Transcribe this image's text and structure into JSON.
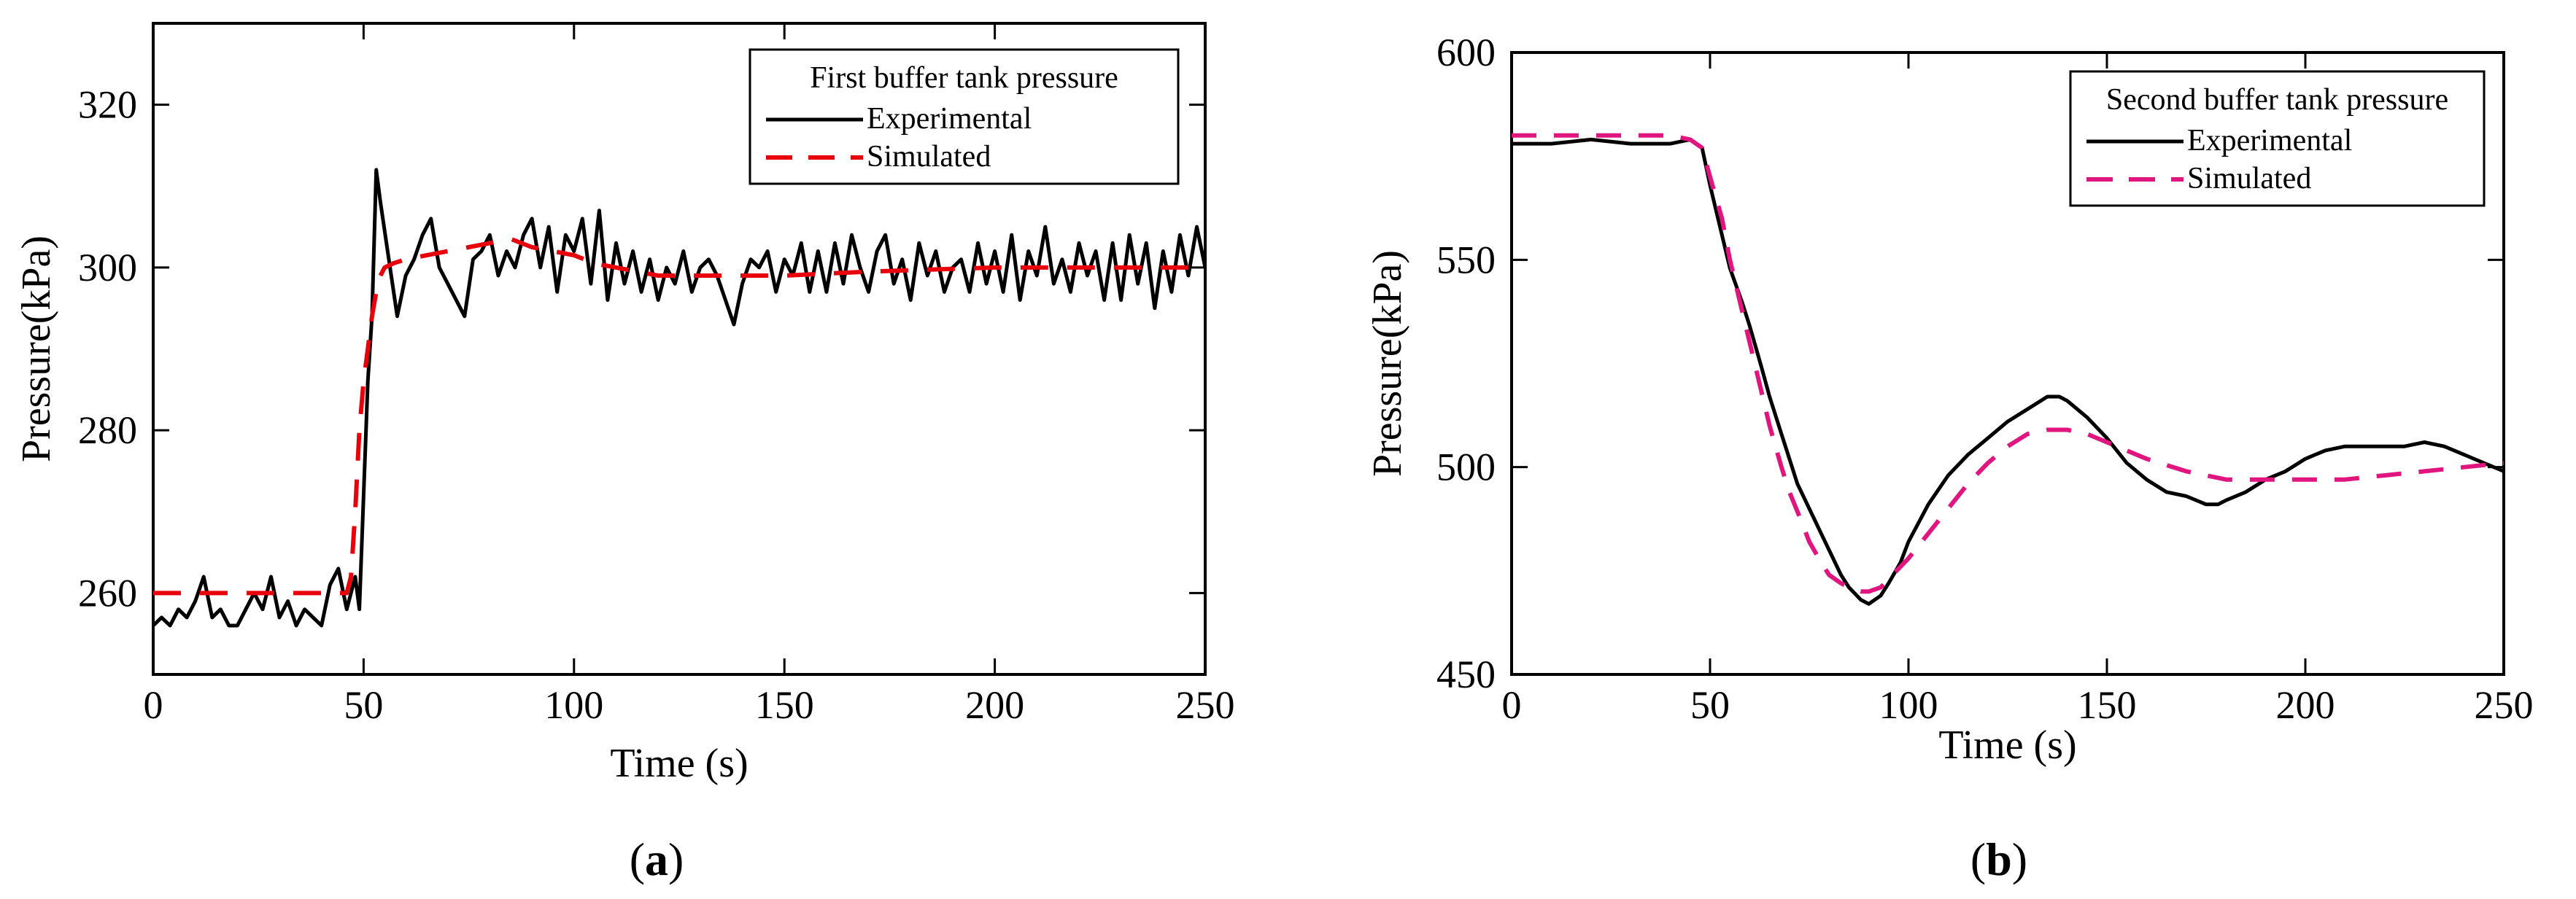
{
  "colors": {
    "experimental": "#000000",
    "simulated_a": "#e8000b",
    "simulated_b": "#e0157f",
    "frame": "#000000"
  },
  "panels": [
    {
      "label_open": "(",
      "label_letter": "a",
      "label_close": ")",
      "legend": {
        "title": "First buffer tank pressure",
        "experimental": "Experimental",
        "simulated": "Simulated"
      }
    },
    {
      "label_open": "(",
      "label_letter": "b",
      "label_close": ")",
      "legend": {
        "title": "Second buffer tank pressure",
        "experimental": "Experimental",
        "simulated": "Simulated"
      }
    }
  ],
  "chart_data": [
    {
      "type": "line",
      "title": "First buffer tank pressure",
      "xlabel": "Time (s)",
      "ylabel": "Pressure(kPa)",
      "xlim": [
        0,
        250
      ],
      "ylim": [
        250,
        330
      ],
      "xticks": [
        0,
        50,
        100,
        150,
        200,
        250
      ],
      "yticks": [
        260,
        280,
        300,
        320
      ],
      "legend_position": "top-right",
      "series": [
        {
          "name": "Experimental",
          "style": "solid",
          "x": [
            0,
            2,
            4,
            6,
            8,
            10,
            12,
            14,
            16,
            18,
            20,
            22,
            24,
            26,
            28,
            30,
            32,
            34,
            36,
            38,
            40,
            42,
            44,
            46,
            48,
            49,
            50,
            51,
            52,
            53,
            54,
            56,
            58,
            60,
            62,
            64,
            66,
            68,
            70,
            72,
            74,
            76,
            78,
            80,
            82,
            84,
            86,
            88,
            90,
            92,
            94,
            96,
            98,
            100,
            102,
            104,
            106,
            108,
            110,
            112,
            114,
            116,
            118,
            120,
            122,
            124,
            126,
            128,
            130,
            132,
            134,
            136,
            138,
            140,
            142,
            144,
            146,
            148,
            150,
            152,
            154,
            156,
            158,
            160,
            162,
            164,
            166,
            168,
            170,
            172,
            174,
            176,
            178,
            180,
            182,
            184,
            186,
            188,
            190,
            192,
            194,
            196,
            198,
            200,
            202,
            204,
            206,
            208,
            210,
            212,
            214,
            216,
            218,
            220,
            222,
            224,
            226,
            228,
            230,
            232,
            234,
            236,
            238,
            240,
            242,
            244,
            246,
            248,
            250
          ],
          "values": [
            256,
            257,
            256,
            258,
            257,
            259,
            262,
            257,
            258,
            256,
            256,
            258,
            260,
            258,
            262,
            257,
            259,
            256,
            258,
            257,
            256,
            261,
            263,
            258,
            262,
            258,
            272,
            286,
            294,
            312,
            308,
            301,
            294,
            299,
            301,
            304,
            306,
            300,
            298,
            296,
            294,
            301,
            302,
            304,
            299,
            302,
            300,
            304,
            306,
            300,
            305,
            297,
            304,
            302,
            306,
            298,
            307,
            296,
            303,
            298,
            302,
            297,
            301,
            296,
            300,
            298,
            302,
            297,
            300,
            301,
            299,
            296,
            293,
            298,
            301,
            300,
            302,
            297,
            301,
            299,
            303,
            297,
            302,
            297,
            303,
            298,
            304,
            300,
            297,
            302,
            304,
            298,
            301,
            296,
            303,
            299,
            302,
            297,
            300,
            301,
            297,
            303,
            298,
            302,
            297,
            304,
            296,
            302,
            299,
            305,
            298,
            301,
            297,
            303,
            299,
            302,
            296,
            303,
            296,
            304,
            298,
            303,
            295,
            302,
            297,
            304,
            299,
            305,
            300
          ]
        },
        {
          "name": "Simulated",
          "style": "dashed",
          "x": [
            0,
            46,
            47,
            48,
            49,
            50,
            51,
            52,
            53,
            54,
            55,
            57,
            60,
            65,
            70,
            75,
            80,
            85,
            90,
            95,
            100,
            105,
            110,
            115,
            120,
            130,
            140,
            150,
            170,
            200,
            230,
            250
          ],
          "values": [
            260,
            260,
            262,
            270,
            280,
            286,
            290,
            294,
            297,
            299,
            300,
            300.5,
            301,
            301.5,
            302,
            302.5,
            303,
            303.5,
            302.5,
            302,
            301.5,
            300.5,
            300,
            299.5,
            299,
            299,
            299,
            299,
            299.5,
            300,
            300,
            300
          ]
        }
      ]
    },
    {
      "type": "line",
      "title": "Second buffer tank pressure",
      "xlabel": "Time (s)",
      "ylabel": "Pressure(kPa)",
      "xlim": [
        0,
        250
      ],
      "ylim": [
        450,
        600
      ],
      "xticks": [
        0,
        50,
        100,
        150,
        200,
        250
      ],
      "yticks": [
        450,
        500,
        550,
        600
      ],
      "legend_position": "top-right",
      "series": [
        {
          "name": "Experimental",
          "style": "solid",
          "x": [
            0,
            10,
            20,
            30,
            40,
            45,
            48,
            50,
            52,
            55,
            58,
            60,
            63,
            65,
            68,
            70,
            72,
            75,
            78,
            80,
            83,
            85,
            88,
            90,
            93,
            95,
            98,
            100,
            105,
            110,
            115,
            120,
            125,
            130,
            135,
            138,
            140,
            145,
            150,
            155,
            160,
            165,
            170,
            175,
            178,
            180,
            185,
            190,
            195,
            200,
            205,
            210,
            215,
            220,
            225,
            230,
            235,
            240,
            245,
            250
          ],
          "values": [
            578,
            578,
            579,
            578,
            578,
            579,
            577,
            568,
            560,
            548,
            540,
            534,
            524,
            517,
            508,
            502,
            496,
            490,
            484,
            480,
            474,
            471,
            468,
            467,
            469,
            472,
            477,
            482,
            491,
            498,
            503,
            507,
            511,
            514,
            517,
            517,
            516,
            512,
            507,
            501,
            497,
            494,
            493,
            491,
            491,
            492,
            494,
            497,
            499,
            502,
            504,
            505,
            505,
            505,
            505,
            506,
            505,
            503,
            501,
            499
          ]
        },
        {
          "name": "Simulated",
          "style": "dashed",
          "x": [
            0,
            10,
            20,
            30,
            40,
            45,
            48,
            50,
            53,
            55,
            58,
            60,
            63,
            65,
            68,
            70,
            73,
            75,
            78,
            80,
            83,
            85,
            88,
            90,
            93,
            95,
            100,
            105,
            110,
            115,
            120,
            125,
            130,
            135,
            140,
            145,
            150,
            160,
            170,
            180,
            190,
            200,
            210,
            220,
            230,
            240,
            250
          ],
          "values": [
            580,
            580,
            580,
            580,
            580,
            579,
            577,
            570,
            560,
            550,
            538,
            530,
            518,
            510,
            500,
            494,
            487,
            482,
            477,
            474,
            472,
            471,
            470,
            470,
            471,
            473,
            478,
            484,
            490,
            496,
            501,
            505,
            508,
            509,
            509,
            508,
            506,
            502,
            499,
            497,
            497,
            497,
            497,
            498,
            499,
            500,
            501
          ]
        }
      ]
    }
  ]
}
